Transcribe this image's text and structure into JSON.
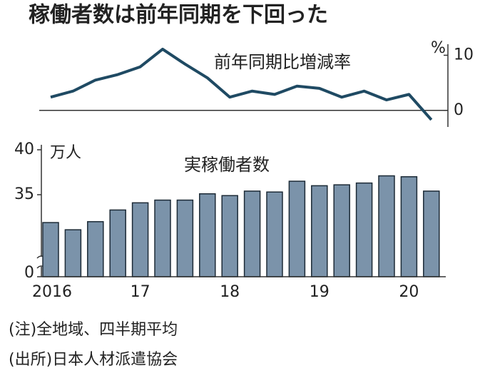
{
  "title": "稼働者数は前年同期を下回った",
  "notes": [
    "(注)全地域、四半期平均",
    "(出所)日本人材派遣協会"
  ],
  "chart_data": [
    {
      "type": "line",
      "title": "前年同期比増減率",
      "unit": "%",
      "color": "#1f4a63",
      "categories": [
        "2016",
        null,
        null,
        null,
        "17",
        null,
        null,
        null,
        "18",
        null,
        null,
        null,
        "19",
        null,
        null,
        null,
        "20",
        null
      ],
      "values": [
        2.4,
        3.5,
        5.5,
        6.5,
        7.9,
        11.1,
        8.4,
        5.9,
        2.4,
        3.5,
        2.9,
        4.4,
        4.0,
        2.4,
        3.5,
        1.9,
        2.9,
        -1.7
      ],
      "ylim": [
        -3,
        12
      ],
      "yticks": [
        0,
        10
      ]
    },
    {
      "type": "bar",
      "title": "実稼働者数",
      "unit": "万人",
      "color": "#7b93aa",
      "categories": [
        "2016",
        null,
        null,
        null,
        "17",
        null,
        null,
        null,
        "18",
        null,
        null,
        null,
        "19",
        null,
        null,
        null,
        "20",
        null
      ],
      "values": [
        31.9,
        31.1,
        32.0,
        33.3,
        34.1,
        34.4,
        34.4,
        35.1,
        34.9,
        35.4,
        35.3,
        36.5,
        36.0,
        36.1,
        36.3,
        37.1,
        37.0,
        35.4
      ],
      "ylim": [
        0,
        40
      ],
      "axis_break": [
        0,
        30
      ],
      "yticks": [
        0,
        35,
        40
      ]
    }
  ]
}
